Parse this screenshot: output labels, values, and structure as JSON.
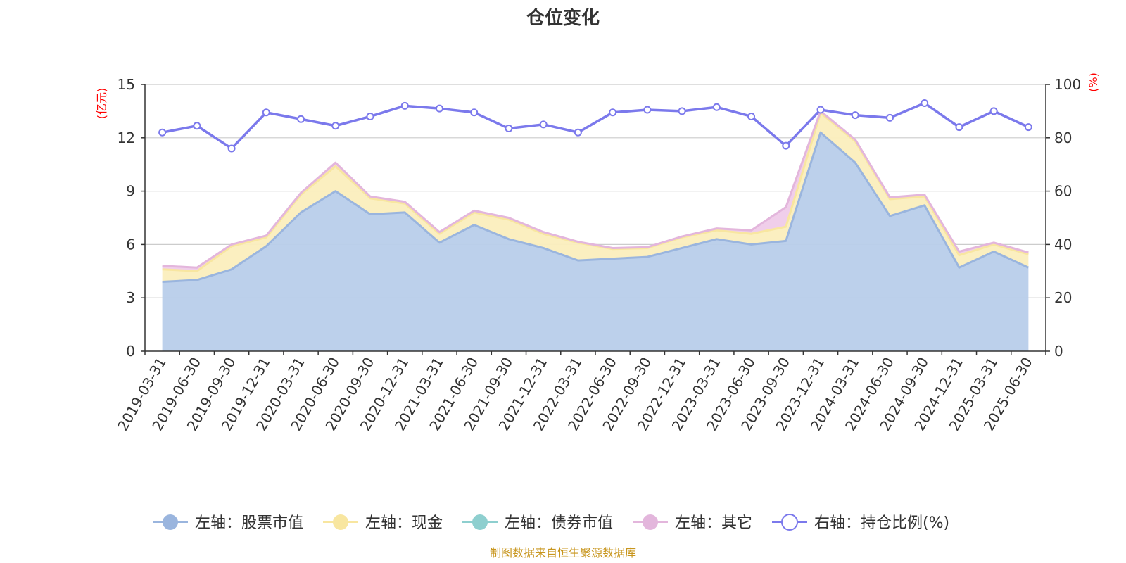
{
  "chart_data": {
    "type": "area",
    "title": "仓位变化",
    "left_axis_unit": "(亿元)",
    "right_axis_unit": "(%)",
    "ylim_left": [
      0,
      15
    ],
    "yticks_left": [
      0,
      3,
      6,
      9,
      12,
      15
    ],
    "ylim_right": [
      0,
      100
    ],
    "yticks_right": [
      0,
      20,
      40,
      60,
      80,
      100
    ],
    "grid": true,
    "legend_position": "bottom",
    "categories": [
      "2019-03-31",
      "2019-06-30",
      "2019-09-30",
      "2019-12-31",
      "2020-03-31",
      "2020-06-30",
      "2020-09-30",
      "2020-12-31",
      "2021-03-31",
      "2021-06-30",
      "2021-09-30",
      "2021-12-31",
      "2022-03-31",
      "2022-06-30",
      "2022-09-30",
      "2022-12-31",
      "2023-03-31",
      "2023-06-30",
      "2023-09-30",
      "2023-12-31",
      "2024-03-31",
      "2024-06-30",
      "2024-09-30",
      "2024-12-31",
      "2025-03-31",
      "2025-06-30"
    ],
    "series": [
      {
        "name": "左轴：股票市值",
        "axis": "left",
        "color": "#9ab5de",
        "fill": "#b8cdea",
        "values": [
          3.9,
          4.0,
          4.6,
          5.9,
          7.8,
          9.0,
          7.7,
          7.8,
          6.1,
          7.1,
          6.3,
          5.8,
          5.1,
          5.2,
          5.3,
          5.8,
          6.3,
          6.0,
          6.2,
          12.3,
          10.6,
          7.6,
          8.2,
          4.7,
          5.6,
          4.7
        ]
      },
      {
        "name": "左轴：现金",
        "axis": "left",
        "color": "#f8e6a0",
        "fill": "#fbeebd",
        "values": [
          0.7,
          0.5,
          1.3,
          0.5,
          1.0,
          1.4,
          0.9,
          0.5,
          0.5,
          0.7,
          1.1,
          0.8,
          1.0,
          0.55,
          0.5,
          0.6,
          0.5,
          0.6,
          0.8,
          1.1,
          1.2,
          0.95,
          0.5,
          0.7,
          0.4,
          0.75
        ]
      },
      {
        "name": "左轴：债券市值",
        "axis": "left",
        "color": "#8ecfcf",
        "fill": "#8ecfcf",
        "values": [
          0,
          0,
          0,
          0,
          0,
          0,
          0,
          0,
          0,
          0,
          0,
          0,
          0,
          0,
          0,
          0,
          0,
          0,
          0,
          0,
          0,
          0,
          0,
          0,
          0,
          0
        ]
      },
      {
        "name": "左轴：其它",
        "axis": "left",
        "color": "#e3b6dc",
        "fill": "#efcbe9",
        "values": [
          0.2,
          0.2,
          0.1,
          0.1,
          0.1,
          0.2,
          0.1,
          0.1,
          0.1,
          0.1,
          0.1,
          0.1,
          0.05,
          0.05,
          0.05,
          0.05,
          0.1,
          0.2,
          1.1,
          0.1,
          0.1,
          0.1,
          0.1,
          0.2,
          0.1,
          0.1
        ]
      },
      {
        "name": "右轴：持仓比例(%)",
        "axis": "right",
        "color": "#7b79ec",
        "values": [
          82,
          84.5,
          76,
          89.5,
          87,
          84.5,
          88,
          92,
          91,
          89.5,
          83.5,
          85,
          82,
          89.5,
          90.5,
          90,
          91.5,
          88,
          77,
          90.5,
          88.5,
          87.5,
          93,
          84,
          90,
          84
        ]
      }
    ]
  },
  "source_note": "制图数据来自恒生聚源数据库"
}
